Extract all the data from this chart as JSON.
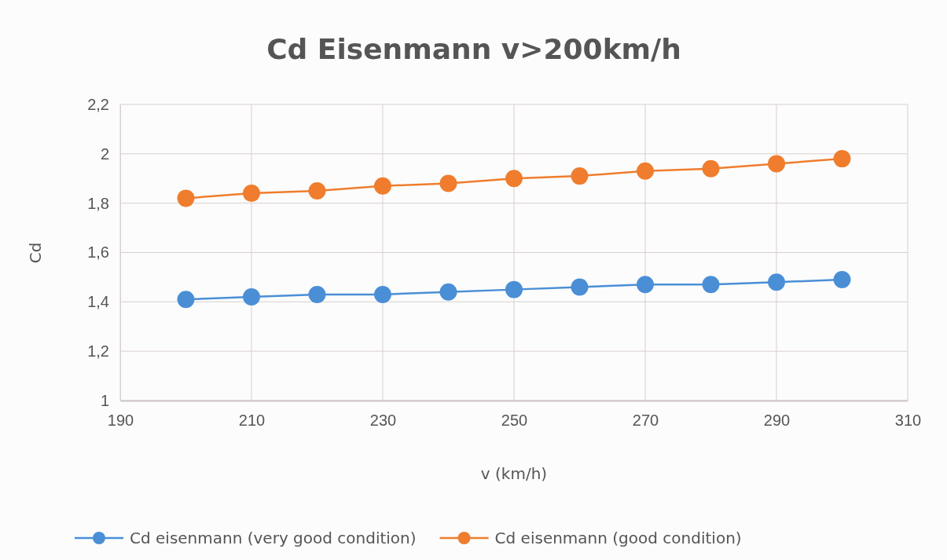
{
  "chart_data": {
    "type": "line",
    "title": "Cd Eisenmann  v>200km/h",
    "xlabel": "v (km/h)",
    "ylabel": "Cd",
    "x": [
      200,
      210,
      220,
      230,
      240,
      250,
      260,
      270,
      280,
      290,
      300
    ],
    "series": [
      {
        "name": "Cd eisenmann (very good condition)",
        "color": "#4a8fd6",
        "values": [
          1.41,
          1.42,
          1.43,
          1.43,
          1.44,
          1.45,
          1.46,
          1.47,
          1.47,
          1.48,
          1.49
        ]
      },
      {
        "name": "Cd eisenmann (good condition)",
        "color": "#ef7d2d",
        "values": [
          1.82,
          1.84,
          1.85,
          1.87,
          1.88,
          1.9,
          1.91,
          1.93,
          1.94,
          1.96,
          1.98
        ]
      }
    ],
    "xlim": [
      190,
      310
    ],
    "xticks": [
      190,
      210,
      230,
      250,
      270,
      290,
      310
    ],
    "ylim": [
      1,
      2.2
    ],
    "yticks": [
      {
        "value": 1,
        "label": "1"
      },
      {
        "value": 1.2,
        "label": "1,2"
      },
      {
        "value": 1.4,
        "label": "1,4"
      },
      {
        "value": 1.6,
        "label": "1,6"
      },
      {
        "value": 1.8,
        "label": "1,8"
      },
      {
        "value": 2,
        "label": "2"
      },
      {
        "value": 2.2,
        "label": "2,2"
      }
    ],
    "grid": true,
    "legend": "bottom",
    "marker": "circle",
    "line_style": "solid"
  }
}
